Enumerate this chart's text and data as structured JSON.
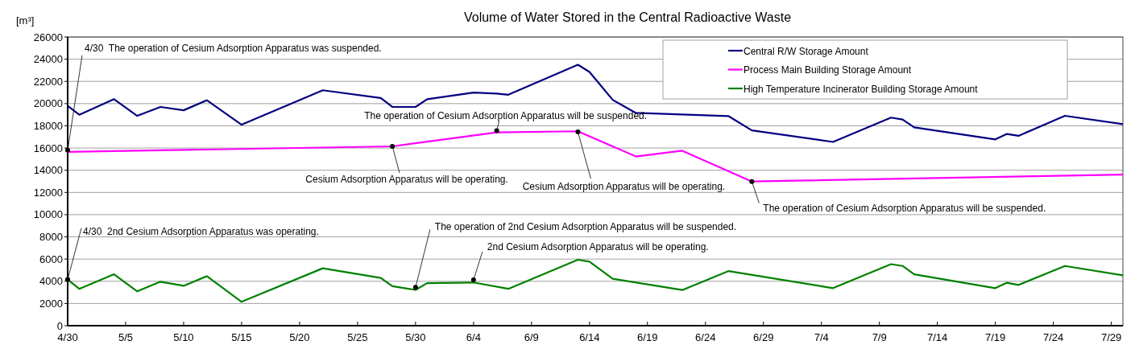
{
  "chart_data": {
    "type": "line",
    "title": "Volume of Water Stored in the Central Radioactive Waste",
    "ylabel": "[m³]",
    "xlim": [
      "--04-30",
      "--07-30"
    ],
    "xticks": [
      {
        "value": "--04-30",
        "label": "4/30"
      },
      {
        "value": "--05-05",
        "label": "5/5"
      },
      {
        "value": "--05-10",
        "label": "5/10"
      },
      {
        "value": "--05-15",
        "label": "5/15"
      },
      {
        "value": "--05-20",
        "label": "5/20"
      },
      {
        "value": "--05-25",
        "label": "5/25"
      },
      {
        "value": "--05-30",
        "label": "5/30"
      },
      {
        "value": "--06-04",
        "label": "6/4"
      },
      {
        "value": "--06-09",
        "label": "6/9"
      },
      {
        "value": "--06-14",
        "label": "6/14"
      },
      {
        "value": "--06-19",
        "label": "6/19"
      },
      {
        "value": "--06-24",
        "label": "6/24"
      },
      {
        "value": "--06-29",
        "label": "6/29"
      },
      {
        "value": "--07-04",
        "label": "7/4"
      },
      {
        "value": "--07-09",
        "label": "7/9"
      },
      {
        "value": "--07-14",
        "label": "7/14"
      },
      {
        "value": "--07-19",
        "label": "7/19"
      },
      {
        "value": "--07-24",
        "label": "7/24"
      },
      {
        "value": "--07-29",
        "label": "7/29"
      }
    ],
    "ylim": [
      0,
      26000
    ],
    "yticks": [
      0,
      2000,
      4000,
      6000,
      8000,
      10000,
      12000,
      14000,
      16000,
      18000,
      20000,
      22000,
      24000,
      26000
    ],
    "grid": "y",
    "legend": "top right",
    "marker": "none",
    "line_style": "solid",
    "series": [
      {
        "name": "Central R/W Storage Amount",
        "color": "#000080",
        "x": [
          "--04-30",
          "--05-01",
          "--05-04",
          "--05-06",
          "--05-08",
          "--05-10",
          "--05-12",
          "--05-15",
          "--05-22",
          "--05-27",
          "--05-28",
          "--05-30",
          "--05-31",
          "--06-04",
          "--06-06",
          "--06-07",
          "--06-13",
          "--06-14",
          "--06-16",
          "--06-18",
          "--06-26",
          "--06-28",
          "--07-05",
          "--07-10",
          "--07-11",
          "--07-12",
          "--07-19",
          "--07-20",
          "--07-21",
          "--07-25",
          "--07-30"
        ],
        "values": [
          19800,
          19000,
          20400,
          18900,
          19700,
          19400,
          20300,
          18100,
          21200,
          20500,
          19700,
          19700,
          20400,
          21000,
          20900,
          20800,
          23500,
          22850,
          20340,
          19160,
          18870,
          17590,
          16550,
          18740,
          18570,
          17860,
          16780,
          17270,
          17100,
          18900,
          18150
        ]
      },
      {
        "name": "Process Main Building Storage Amount",
        "color": "#ff00ff",
        "x": [
          "--04-30",
          "--05-28",
          "--06-06",
          "--06-13",
          "--06-18",
          "--06-22",
          "--06-28",
          "--07-30"
        ],
        "values": [
          15650,
          16150,
          17410,
          17510,
          15240,
          15760,
          12990,
          13610
        ]
      },
      {
        "name": "High Temperature Incinerator Building Storage Amount",
        "color": "#008000",
        "x": [
          "--04-30",
          "--05-01",
          "--05-04",
          "--05-06",
          "--05-08",
          "--05-10",
          "--05-12",
          "--05-15",
          "--05-22",
          "--05-27",
          "--05-28",
          "--05-30",
          "--05-31",
          "--06-04",
          "--06-07",
          "--06-13",
          "--06-14",
          "--06-16",
          "--06-22",
          "--06-26",
          "--07-05",
          "--07-10",
          "--07-11",
          "--07-12",
          "--07-19",
          "--07-20",
          "--07-21",
          "--07-25",
          "--07-30"
        ],
        "values": [
          4160,
          3320,
          4630,
          3090,
          3960,
          3590,
          4460,
          2150,
          5170,
          4300,
          3560,
          3220,
          3830,
          3890,
          3320,
          5940,
          5770,
          4230,
          3210,
          4920,
          3380,
          5540,
          5380,
          4620,
          3380,
          3870,
          3670,
          5380,
          4530
        ]
      }
    ],
    "annotations": [
      {
        "text": "4/30  The operation of Cesium Adsorption Apparatus was suspended.",
        "x": "--04-30",
        "y": 15800
      },
      {
        "text": "Cesium Adsorption Apparatus will be operating.",
        "x": "--05-28",
        "y": 16150
      },
      {
        "text": "The operation of Cesium Adsorption Apparatus will be suspended.",
        "x": "--06-06",
        "y": 17560
      },
      {
        "text": "Cesium Adsorption Apparatus will be operating.",
        "x": "--06-13",
        "y": 17450
      },
      {
        "text": "The operation of Cesium Adsorption Apparatus will be suspended.",
        "x": "--06-28",
        "y": 12990
      },
      {
        "text": "4/30  2nd Cesium Adsorption Apparatus was operating.",
        "x": "--04-30",
        "y": 4160
      },
      {
        "text": "The operation of 2nd Cesium Adsorption Apparatus will be suspended.",
        "x": "--05-30",
        "y": 3450
      },
      {
        "text": "2nd Cesium Adsorption Apparatus will be operating.",
        "x": "--06-04",
        "y": 4120
      }
    ]
  }
}
